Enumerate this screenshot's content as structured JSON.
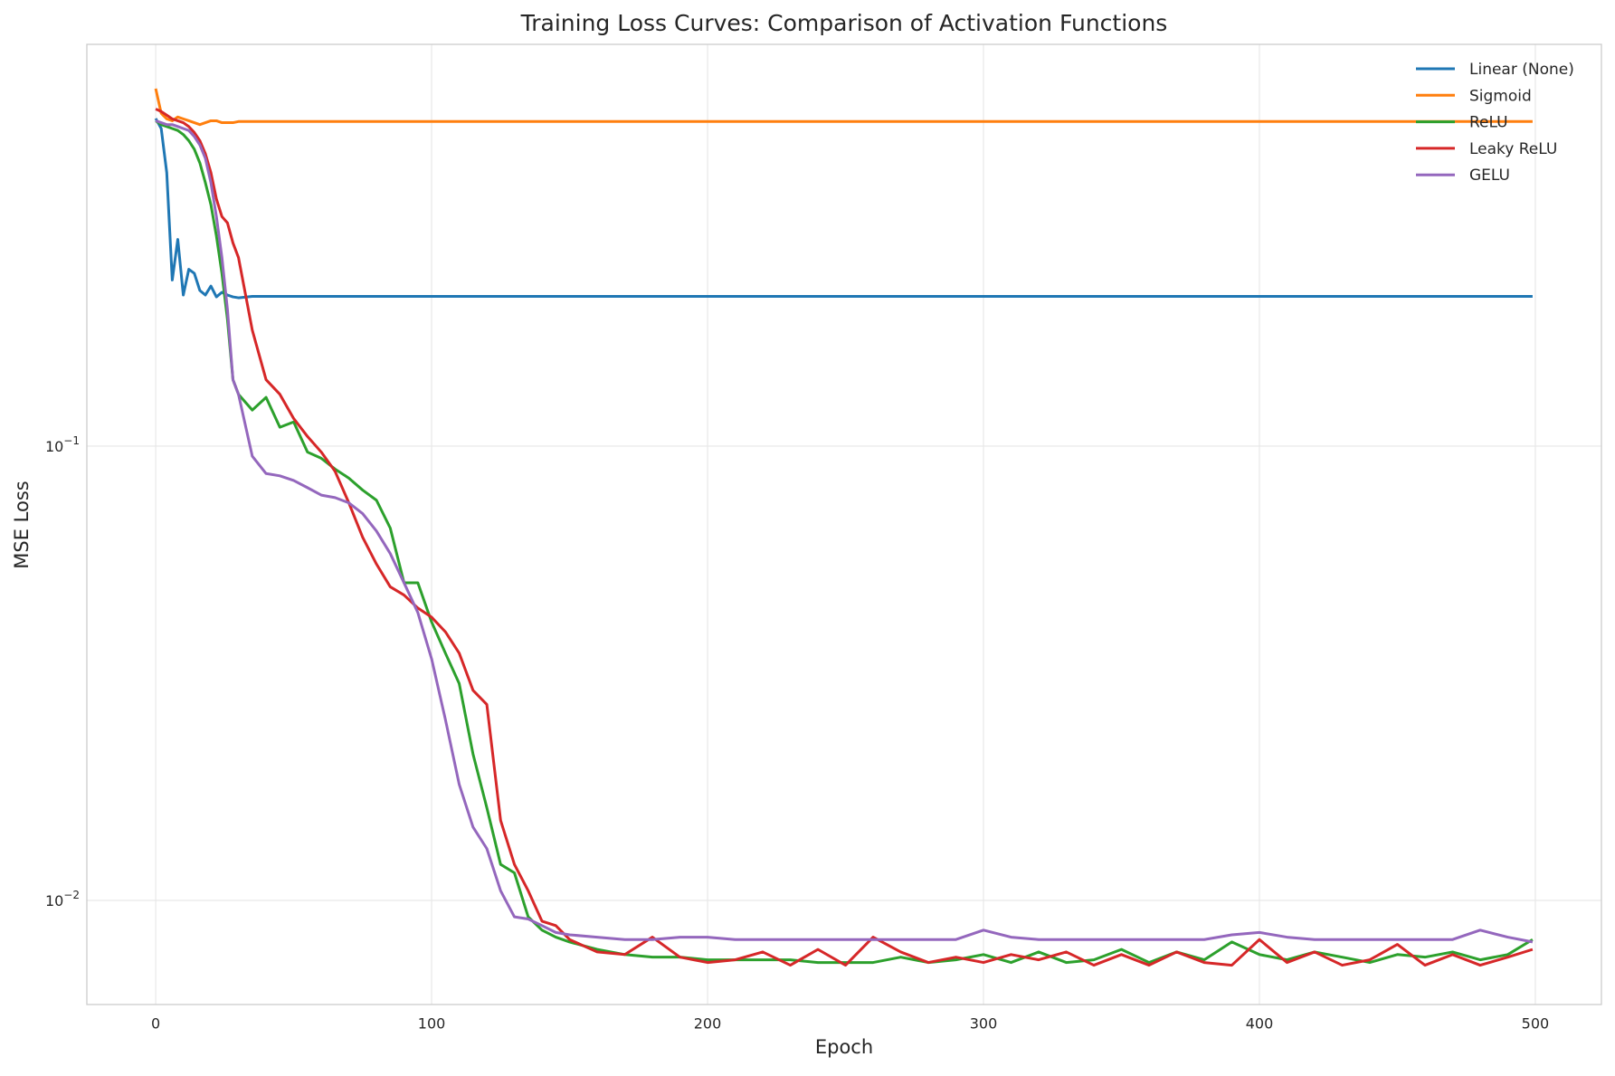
{
  "chart_data": {
    "type": "line",
    "title": "Training Loss Curves: Comparison of Activation Functions",
    "x_label": "Epoch",
    "y_label": "MSE Loss",
    "y_scale": "log",
    "grid": true,
    "legend_position": "upper-right",
    "xlim": [
      -24.95,
      523.95
    ],
    "ylim": [
      0.0059,
      0.766
    ],
    "xticks": [
      0,
      100,
      200,
      300,
      400,
      500
    ],
    "yticks": [
      {
        "value": 0.1,
        "label": "10−1"
      },
      {
        "value": 0.01,
        "label": "10−2"
      }
    ],
    "x": [
      0,
      2,
      4,
      6,
      8,
      10,
      12,
      14,
      16,
      18,
      20,
      22,
      24,
      26,
      28,
      30,
      35,
      40,
      45,
      50,
      55,
      60,
      65,
      70,
      75,
      80,
      85,
      90,
      95,
      100,
      105,
      110,
      115,
      120,
      125,
      130,
      135,
      140,
      145,
      150,
      160,
      170,
      180,
      190,
      200,
      210,
      220,
      230,
      240,
      250,
      260,
      270,
      280,
      290,
      300,
      310,
      320,
      330,
      340,
      350,
      360,
      370,
      380,
      390,
      400,
      410,
      420,
      430,
      440,
      450,
      460,
      470,
      480,
      490,
      499
    ],
    "series": [
      {
        "name": "Linear (None)",
        "color": "#1f77b4",
        "values": [
          0.526,
          0.5,
          0.4,
          0.232,
          0.285,
          0.215,
          0.245,
          0.24,
          0.22,
          0.215,
          0.225,
          0.213,
          0.218,
          0.215,
          0.213,
          0.212,
          0.2135,
          0.2135,
          0.2135,
          0.2135,
          0.2135,
          0.2135,
          0.2135,
          0.2135,
          0.2135,
          0.2135,
          0.2135,
          0.2135,
          0.2135,
          0.2135,
          0.2135,
          0.2135,
          0.2135,
          0.2135,
          0.2135,
          0.2135,
          0.2135,
          0.2135,
          0.2135,
          0.2135,
          0.2135,
          0.2135,
          0.2135,
          0.2135,
          0.2135,
          0.2135,
          0.2135,
          0.2135,
          0.2135,
          0.2135,
          0.2135,
          0.2135,
          0.2135,
          0.2135,
          0.2135,
          0.2135,
          0.2135,
          0.2135,
          0.2135,
          0.2135,
          0.2135,
          0.2135,
          0.2135,
          0.2135,
          0.2135,
          0.2135,
          0.2135,
          0.2135,
          0.2135,
          0.2135,
          0.2135,
          0.2135,
          0.2135,
          0.2135,
          0.2135
        ]
      },
      {
        "name": "Sigmoid",
        "color": "#ff7f0e",
        "values": [
          0.612,
          0.54,
          0.525,
          0.52,
          0.53,
          0.525,
          0.52,
          0.515,
          0.51,
          0.515,
          0.52,
          0.52,
          0.515,
          0.515,
          0.515,
          0.518,
          0.518,
          0.518,
          0.518,
          0.518,
          0.518,
          0.518,
          0.518,
          0.518,
          0.518,
          0.518,
          0.518,
          0.518,
          0.518,
          0.518,
          0.518,
          0.518,
          0.518,
          0.518,
          0.518,
          0.518,
          0.518,
          0.518,
          0.518,
          0.518,
          0.518,
          0.518,
          0.518,
          0.518,
          0.518,
          0.518,
          0.518,
          0.518,
          0.518,
          0.518,
          0.518,
          0.518,
          0.518,
          0.518,
          0.518,
          0.518,
          0.518,
          0.518,
          0.518,
          0.518,
          0.518,
          0.518,
          0.518,
          0.518,
          0.518,
          0.518,
          0.518,
          0.518,
          0.518,
          0.518,
          0.518,
          0.518,
          0.518,
          0.518,
          0.518
        ]
      },
      {
        "name": "ReLU",
        "color": "#2ca02c",
        "values": [
          0.52,
          0.51,
          0.505,
          0.5,
          0.495,
          0.485,
          0.47,
          0.45,
          0.42,
          0.38,
          0.34,
          0.29,
          0.24,
          0.19,
          0.14,
          0.13,
          0.12,
          0.128,
          0.11,
          0.113,
          0.097,
          0.094,
          0.089,
          0.085,
          0.08,
          0.076,
          0.066,
          0.05,
          0.05,
          0.041,
          0.035,
          0.03,
          0.021,
          0.016,
          0.012,
          0.0115,
          0.0092,
          0.0086,
          0.0083,
          0.0081,
          0.0078,
          0.0076,
          0.0075,
          0.0075,
          0.0074,
          0.0074,
          0.0074,
          0.0074,
          0.0073,
          0.0073,
          0.0073,
          0.0075,
          0.0073,
          0.0074,
          0.0076,
          0.0073,
          0.0077,
          0.0073,
          0.0074,
          0.0078,
          0.0073,
          0.0077,
          0.0074,
          0.0081,
          0.0076,
          0.0074,
          0.0077,
          0.0075,
          0.0073,
          0.0076,
          0.0075,
          0.0077,
          0.0074,
          0.0076,
          0.0082
        ]
      },
      {
        "name": "Leaky ReLU",
        "color": "#d62728",
        "values": [
          0.552,
          0.545,
          0.535,
          0.525,
          0.52,
          0.515,
          0.505,
          0.49,
          0.47,
          0.44,
          0.4,
          0.35,
          0.32,
          0.31,
          0.28,
          0.26,
          0.18,
          0.14,
          0.13,
          0.115,
          0.105,
          0.097,
          0.088,
          0.075,
          0.063,
          0.055,
          0.049,
          0.047,
          0.044,
          0.042,
          0.039,
          0.035,
          0.029,
          0.027,
          0.015,
          0.012,
          0.0105,
          0.009,
          0.0088,
          0.0082,
          0.0077,
          0.0076,
          0.0083,
          0.0075,
          0.0073,
          0.0074,
          0.0077,
          0.0072,
          0.0078,
          0.0072,
          0.0083,
          0.0077,
          0.0073,
          0.0075,
          0.0073,
          0.0076,
          0.0074,
          0.0077,
          0.0072,
          0.0076,
          0.0072,
          0.0077,
          0.0073,
          0.0072,
          0.0082,
          0.0073,
          0.0077,
          0.0072,
          0.0074,
          0.008,
          0.0072,
          0.0076,
          0.0072,
          0.0075,
          0.0078
        ]
      },
      {
        "name": "GELU",
        "color": "#9467bd",
        "values": [
          0.52,
          0.515,
          0.51,
          0.51,
          0.505,
          0.5,
          0.495,
          0.48,
          0.46,
          0.43,
          0.38,
          0.32,
          0.26,
          0.2,
          0.14,
          0.13,
          0.095,
          0.087,
          0.086,
          0.084,
          0.081,
          0.078,
          0.077,
          0.075,
          0.071,
          0.065,
          0.058,
          0.05,
          0.043,
          0.034,
          0.025,
          0.018,
          0.0145,
          0.013,
          0.0105,
          0.0092,
          0.0091,
          0.0088,
          0.0085,
          0.0084,
          0.0083,
          0.0082,
          0.0082,
          0.0083,
          0.0083,
          0.0082,
          0.0082,
          0.0082,
          0.0082,
          0.0082,
          0.0082,
          0.0082,
          0.0082,
          0.0082,
          0.0086,
          0.0083,
          0.0082,
          0.0082,
          0.0082,
          0.0082,
          0.0082,
          0.0082,
          0.0082,
          0.0084,
          0.0085,
          0.0083,
          0.0082,
          0.0082,
          0.0082,
          0.0082,
          0.0082,
          0.0082,
          0.0086,
          0.0083,
          0.0081
        ]
      }
    ]
  }
}
